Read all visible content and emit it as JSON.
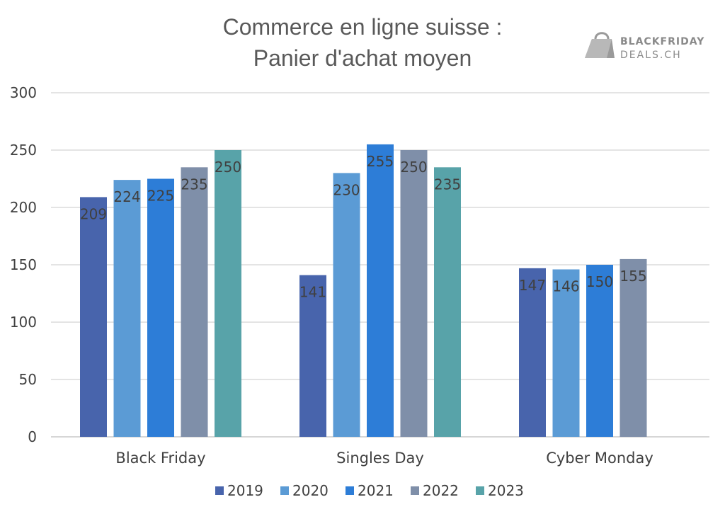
{
  "logo": {
    "line1": "BLACKFRIDAY",
    "line2": "DEALS.CH"
  },
  "chart_data": {
    "type": "bar",
    "title": "Commerce en ligne suisse : Panier d'achat moyen",
    "title_lines": [
      "Commerce en ligne suisse :",
      "Panier d'achat moyen"
    ],
    "xlabel": "",
    "ylabel": "",
    "ylim": [
      0,
      300
    ],
    "yticks": [
      0,
      50,
      100,
      150,
      200,
      250,
      300
    ],
    "grid": true,
    "legend_position": "bottom",
    "categories": [
      "Black Friday",
      "Singles Day",
      "Cyber Monday"
    ],
    "series": [
      {
        "name": "2019",
        "color": "#4864ac",
        "values": [
          209,
          141,
          147
        ]
      },
      {
        "name": "2020",
        "color": "#5b9bd5",
        "values": [
          224,
          230,
          146
        ]
      },
      {
        "name": "2021",
        "color": "#2d7dd7",
        "values": [
          225,
          255,
          150
        ]
      },
      {
        "name": "2022",
        "color": "#7f8fa9",
        "values": [
          235,
          250,
          155
        ]
      },
      {
        "name": "2023",
        "color": "#58a3a9",
        "values": [
          250,
          235,
          null
        ]
      }
    ]
  }
}
